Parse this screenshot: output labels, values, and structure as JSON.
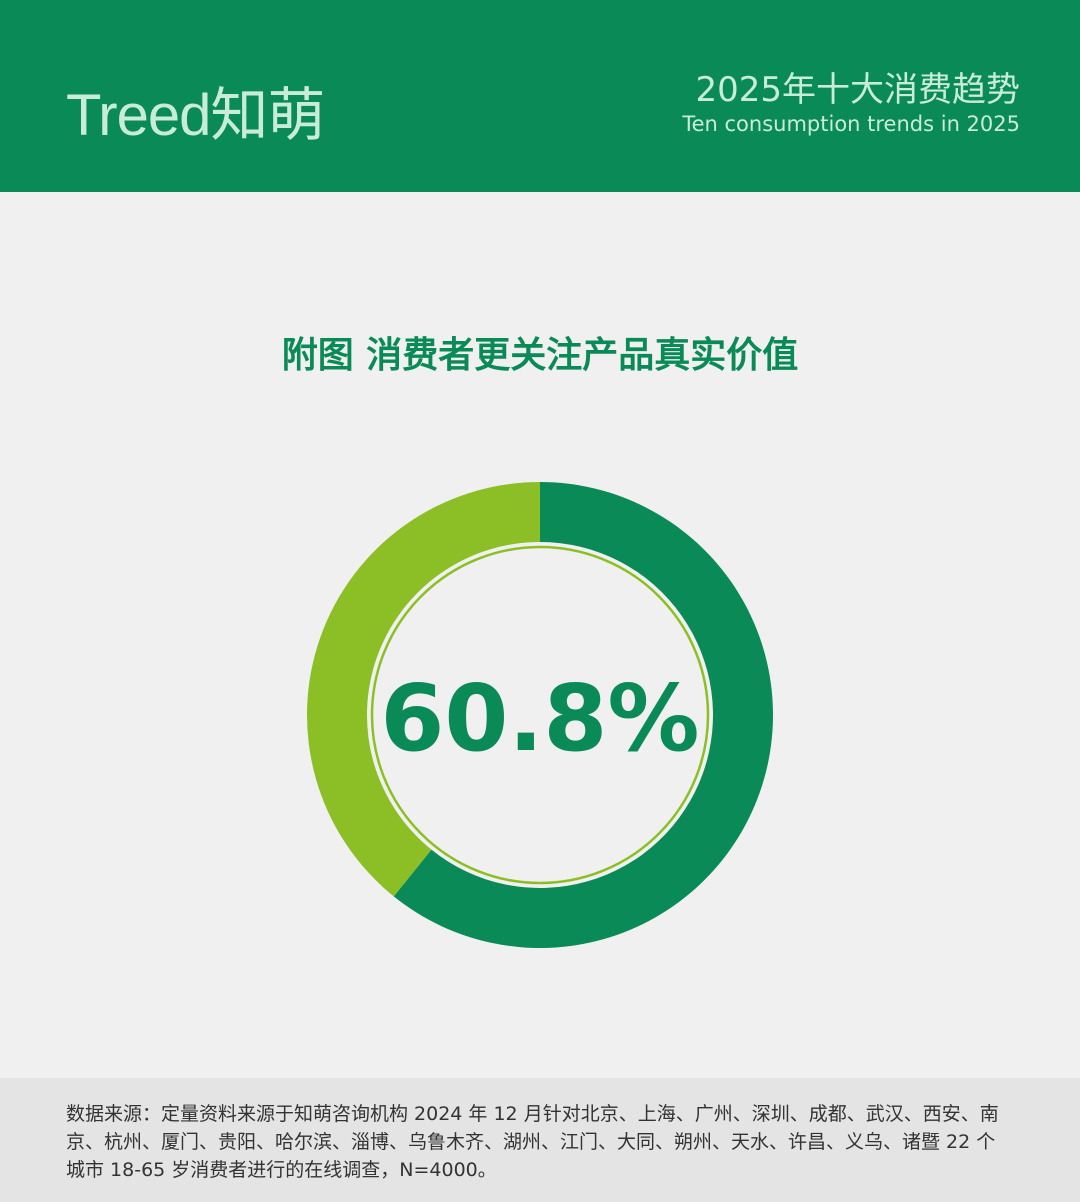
{
  "header": {
    "logo": "Treed知萌",
    "title_cn": "2025年十大消费趋势",
    "title_en": "Ten consumption trends in 2025"
  },
  "title": "附图 消费者更关注产品真实价值",
  "chart_data": {
    "type": "pie",
    "variant": "donut",
    "values": [
      60.8,
      39.2
    ],
    "center_label": "60.8%",
    "colors": [
      "#0a8a56",
      "#8cbf26"
    ]
  },
  "footer": {
    "source": "数据来源：定量资料来源于知萌咨询机构 2024 年 12 月针对北京、上海、广州、深圳、成都、武汉、西安、南京、杭州、厦门、贵阳、哈尔滨、淄博、乌鲁木齐、湖州、江门、大同、朔州、天水、许昌、义乌、诸暨 22 个城市 18-65 岁消费者进行的在线调查，N=4000。"
  }
}
